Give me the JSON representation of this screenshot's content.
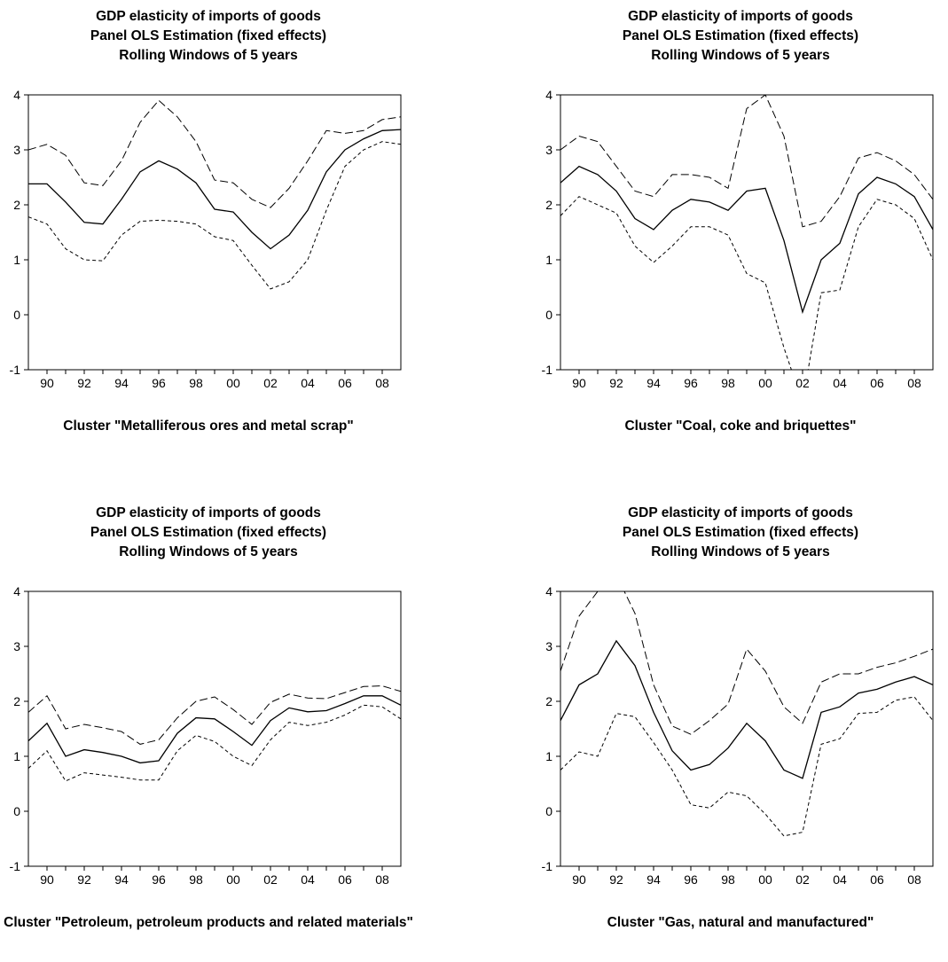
{
  "chart_data": [
    {
      "type": "line",
      "title": [
        "GDP elasticity of imports of goods",
        "Panel OLS Estimation (fixed effects)",
        "Rolling Windows of 5 years"
      ],
      "xlabel": "Cluster \"Metalliferous ores and metal scrap\"",
      "ylim": [
        -1,
        4
      ],
      "xlim": [
        1989,
        2009
      ],
      "yticks": [
        "-1",
        "0",
        "1",
        "2",
        "3",
        "4"
      ],
      "xtick_labels": [
        "90",
        "92",
        "94",
        "96",
        "98",
        "00",
        "02",
        "04",
        "06",
        "08"
      ],
      "x": [
        1989,
        1990,
        1991,
        1992,
        1993,
        1994,
        1995,
        1996,
        1997,
        1998,
        1999,
        2000,
        2001,
        2002,
        2003,
        2004,
        2005,
        2006,
        2007,
        2008,
        2009
      ],
      "series": [
        {
          "style": "upper",
          "values": [
            3.0,
            3.1,
            2.9,
            2.4,
            2.35,
            2.8,
            3.5,
            3.9,
            3.6,
            3.15,
            2.45,
            2.4,
            2.1,
            1.95,
            2.3,
            2.8,
            3.35,
            3.3,
            3.35,
            3.55,
            3.6
          ]
        },
        {
          "style": "estimate",
          "values": [
            2.38,
            2.38,
            2.05,
            1.68,
            1.65,
            2.1,
            2.6,
            2.8,
            2.65,
            2.4,
            1.92,
            1.87,
            1.5,
            1.2,
            1.45,
            1.9,
            2.6,
            3.0,
            3.2,
            3.35,
            3.37
          ]
        },
        {
          "style": "lower",
          "values": [
            1.78,
            1.65,
            1.2,
            1.0,
            0.98,
            1.45,
            1.7,
            1.72,
            1.7,
            1.65,
            1.42,
            1.35,
            0.9,
            0.47,
            0.6,
            1.0,
            1.9,
            2.7,
            3.0,
            3.15,
            3.1
          ]
        }
      ]
    },
    {
      "type": "line",
      "title": [
        "GDP elasticity of imports of goods",
        "Panel OLS Estimation (fixed effects)",
        "Rolling Windows of 5 years"
      ],
      "xlabel": "Cluster \"Coal, coke and briquettes\"",
      "ylim": [
        -1,
        4
      ],
      "xlim": [
        1989,
        2009
      ],
      "yticks": [
        "-1",
        "0",
        "1",
        "2",
        "3",
        "4"
      ],
      "xtick_labels": [
        "90",
        "92",
        "94",
        "96",
        "98",
        "00",
        "02",
        "04",
        "06",
        "08"
      ],
      "x": [
        1989,
        1990,
        1991,
        1992,
        1993,
        1994,
        1995,
        1996,
        1997,
        1998,
        1999,
        2000,
        2001,
        2002,
        2003,
        2004,
        2005,
        2006,
        2007,
        2008,
        2009
      ],
      "series": [
        {
          "style": "upper",
          "values": [
            3.0,
            3.25,
            3.15,
            2.7,
            2.25,
            2.15,
            2.55,
            2.55,
            2.5,
            2.3,
            3.75,
            4.0,
            3.25,
            1.6,
            1.7,
            2.15,
            2.85,
            2.95,
            2.8,
            2.55,
            2.1
          ]
        },
        {
          "style": "estimate",
          "values": [
            2.4,
            2.7,
            2.55,
            2.25,
            1.75,
            1.55,
            1.9,
            2.1,
            2.05,
            1.9,
            2.25,
            2.3,
            1.35,
            0.05,
            1.0,
            1.3,
            2.2,
            2.5,
            2.38,
            2.15,
            1.55
          ]
        },
        {
          "style": "lower",
          "values": [
            1.8,
            2.15,
            2.0,
            1.85,
            1.25,
            0.95,
            1.25,
            1.6,
            1.6,
            1.45,
            0.75,
            0.58,
            -0.6,
            -1.6,
            0.4,
            0.45,
            1.6,
            2.1,
            2.0,
            1.75,
            1.0
          ]
        }
      ]
    },
    {
      "type": "line",
      "title": [
        "GDP elasticity of imports of goods",
        "Panel OLS Estimation (fixed effects)",
        "Rolling Windows of 5 years"
      ],
      "xlabel": "Cluster \"Petroleum, petroleum products and related materials\"",
      "ylim": [
        -1,
        4
      ],
      "xlim": [
        1989,
        2009
      ],
      "yticks": [
        "-1",
        "0",
        "1",
        "2",
        "3",
        "4"
      ],
      "xtick_labels": [
        "90",
        "92",
        "94",
        "96",
        "98",
        "00",
        "02",
        "04",
        "06",
        "08"
      ],
      "x": [
        1989,
        1990,
        1991,
        1992,
        1993,
        1994,
        1995,
        1996,
        1997,
        1998,
        1999,
        2000,
        2001,
        2002,
        2003,
        2004,
        2005,
        2006,
        2007,
        2008,
        2009
      ],
      "series": [
        {
          "style": "upper",
          "values": [
            1.8,
            2.1,
            1.5,
            1.58,
            1.52,
            1.45,
            1.22,
            1.3,
            1.7,
            2.0,
            2.08,
            1.85,
            1.58,
            1.98,
            2.13,
            2.06,
            2.05,
            2.16,
            2.27,
            2.28,
            2.18
          ]
        },
        {
          "style": "estimate",
          "values": [
            1.28,
            1.6,
            1.0,
            1.12,
            1.07,
            1.0,
            0.88,
            0.92,
            1.42,
            1.7,
            1.68,
            1.45,
            1.2,
            1.65,
            1.88,
            1.81,
            1.83,
            1.96,
            2.1,
            2.1,
            1.93
          ]
        },
        {
          "style": "lower",
          "values": [
            0.78,
            1.1,
            0.55,
            0.7,
            0.66,
            0.62,
            0.57,
            0.57,
            1.1,
            1.38,
            1.27,
            1.0,
            0.83,
            1.3,
            1.62,
            1.56,
            1.62,
            1.75,
            1.93,
            1.9,
            1.68
          ]
        }
      ]
    },
    {
      "type": "line",
      "title": [
        "GDP elasticity of imports of goods",
        "Panel OLS Estimation (fixed effects)",
        "Rolling Windows of 5 years"
      ],
      "xlabel": "Cluster \"Gas, natural and manufactured\"",
      "ylim": [
        -1,
        4
      ],
      "xlim": [
        1989,
        2009
      ],
      "yticks": [
        "-1",
        "0",
        "1",
        "2",
        "3",
        "4"
      ],
      "xtick_labels": [
        "90",
        "92",
        "94",
        "96",
        "98",
        "00",
        "02",
        "04",
        "06",
        "08"
      ],
      "x": [
        1989,
        1990,
        1991,
        1992,
        1993,
        1994,
        1995,
        1996,
        1997,
        1998,
        1999,
        2000,
        2001,
        2002,
        2003,
        2004,
        2005,
        2006,
        2007,
        2008,
        2009
      ],
      "series": [
        {
          "style": "upper",
          "values": [
            2.55,
            3.55,
            4.0,
            4.3,
            3.6,
            2.3,
            1.55,
            1.4,
            1.65,
            1.95,
            2.95,
            2.55,
            1.9,
            1.6,
            2.35,
            2.5,
            2.5,
            2.62,
            2.7,
            2.82,
            2.95
          ]
        },
        {
          "style": "estimate",
          "values": [
            1.65,
            2.3,
            2.5,
            3.1,
            2.65,
            1.8,
            1.1,
            0.75,
            0.85,
            1.15,
            1.6,
            1.28,
            0.75,
            0.6,
            1.8,
            1.9,
            2.15,
            2.22,
            2.35,
            2.45,
            2.3
          ]
        },
        {
          "style": "lower",
          "values": [
            0.75,
            1.08,
            1.0,
            1.78,
            1.72,
            1.25,
            0.75,
            0.12,
            0.06,
            0.35,
            0.28,
            -0.05,
            -0.45,
            -0.38,
            1.22,
            1.32,
            1.78,
            1.8,
            2.02,
            2.08,
            1.65
          ]
        }
      ]
    }
  ]
}
